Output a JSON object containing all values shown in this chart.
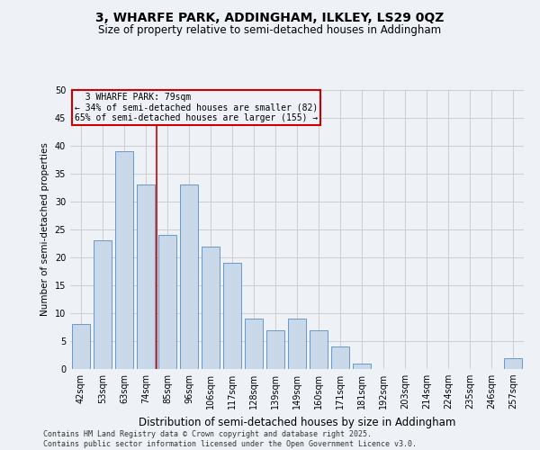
{
  "title": "3, WHARFE PARK, ADDINGHAM, ILKLEY, LS29 0QZ",
  "subtitle": "Size of property relative to semi-detached houses in Addingham",
  "xlabel": "Distribution of semi-detached houses by size in Addingham",
  "ylabel": "Number of semi-detached properties",
  "categories": [
    "42sqm",
    "53sqm",
    "63sqm",
    "74sqm",
    "85sqm",
    "96sqm",
    "106sqm",
    "117sqm",
    "128sqm",
    "139sqm",
    "149sqm",
    "160sqm",
    "171sqm",
    "181sqm",
    "192sqm",
    "203sqm",
    "214sqm",
    "224sqm",
    "235sqm",
    "246sqm",
    "257sqm"
  ],
  "values": [
    8,
    23,
    39,
    33,
    24,
    33,
    22,
    19,
    9,
    7,
    9,
    7,
    4,
    1,
    0,
    0,
    0,
    0,
    0,
    0,
    2
  ],
  "bar_color": "#c8d8e8",
  "bar_edge_color": "#6699cc",
  "property_label": "3 WHARFE PARK: 79sqm",
  "smaller_pct": "34%",
  "smaller_count": 82,
  "larger_pct": "65%",
  "larger_count": 155,
  "vline_color": "#cc0000",
  "box_edge_color": "#cc0000",
  "ylim": [
    0,
    50
  ],
  "yticks": [
    0,
    5,
    10,
    15,
    20,
    25,
    30,
    35,
    40,
    45,
    50
  ],
  "vline_pos": 3.5,
  "footer": "Contains HM Land Registry data © Crown copyright and database right 2025.\nContains public sector information licensed under the Open Government Licence v3.0.",
  "bg_color": "#eef2f7",
  "title_fontsize": 10,
  "subtitle_fontsize": 8.5,
  "xlabel_fontsize": 8.5,
  "ylabel_fontsize": 7.5,
  "tick_fontsize": 7,
  "footer_fontsize": 6,
  "annot_fontsize": 7
}
